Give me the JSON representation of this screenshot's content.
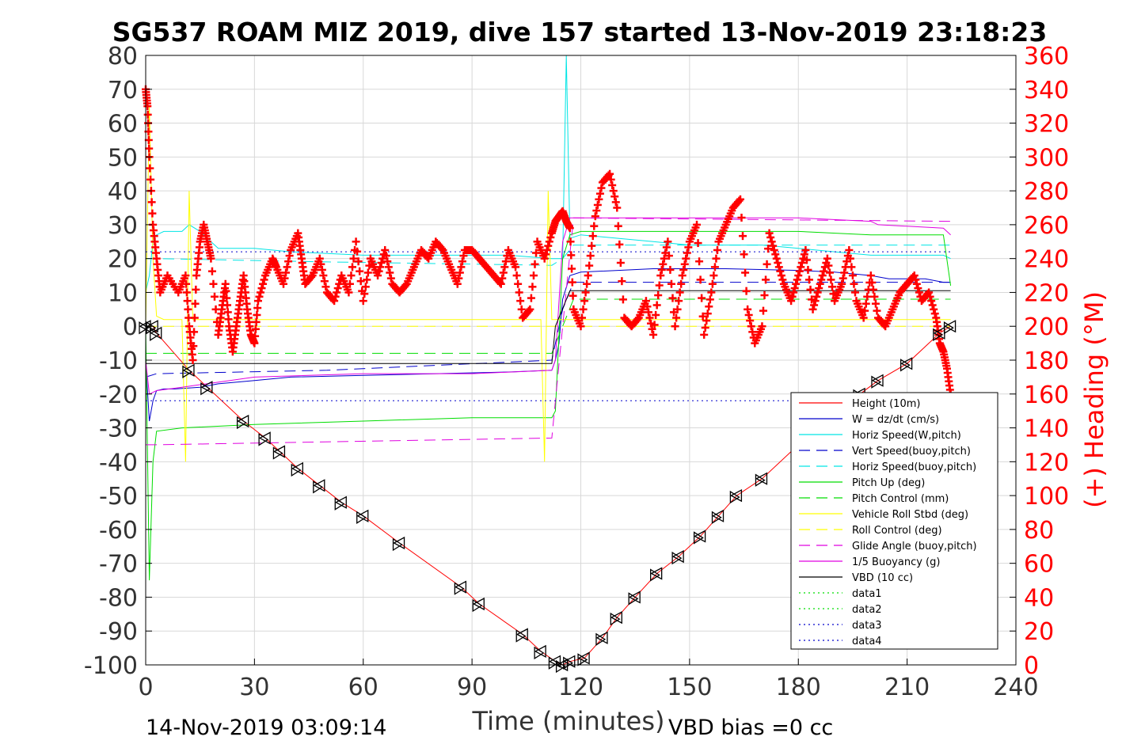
{
  "chart_data": {
    "type": "line",
    "title": "SG537 ROAM MIZ 2019, dive 157 started 13-Nov-2019 23:18:23",
    "xlabel": "Time (minutes)",
    "ylabel": "",
    "y2label": "(+) Heading (°M)",
    "xlim": [
      0,
      240
    ],
    "ylim": [
      -100,
      80
    ],
    "y2lim": [
      0,
      360
    ],
    "xticks": [
      "0",
      "30",
      "60",
      "90",
      "120",
      "150",
      "180",
      "210",
      "240"
    ],
    "yticks": [
      "80",
      "70",
      "60",
      "50",
      "40",
      "30",
      "20",
      "10",
      "0",
      "-10",
      "-20",
      "-30",
      "-40",
      "-50",
      "-60",
      "-70",
      "-80",
      "-90",
      "-100"
    ],
    "y2ticks": [
      "360",
      "340",
      "320",
      "300",
      "280",
      "260",
      "240",
      "220",
      "200",
      "180",
      "160",
      "140",
      "120",
      "100",
      "80",
      "60",
      "40",
      "20",
      "0"
    ],
    "grid": true,
    "legend_position": "lower-right",
    "footer_left": "14-Nov-2019 03:09:14",
    "footer_right": "VBD bias =0 cc",
    "colors": {
      "heading": "#ff0000",
      "height": "#ff0000",
      "w": "#0000cc",
      "horiz_speed": "#00e5e5",
      "pitch": "#00dd00",
      "roll": "#ffff00",
      "buoyancy": "#e000e0",
      "vbd": "#000000"
    },
    "legend": [
      {
        "name": "Height (10m)",
        "color": "#ff0000",
        "style": "solid"
      },
      {
        "name": "W = dz/dt (cm/s)",
        "color": "#0000cc",
        "style": "solid"
      },
      {
        "name": "Horiz Speed(W,pitch)",
        "color": "#00e5e5",
        "style": "solid"
      },
      {
        "name": "Vert Speed(buoy,pitch)",
        "color": "#0000cc",
        "style": "dashed"
      },
      {
        "name": "Horiz Speed(buoy,pitch)",
        "color": "#00e5e5",
        "style": "dashed"
      },
      {
        "name": "Pitch Up (deg)",
        "color": "#00dd00",
        "style": "solid"
      },
      {
        "name": "Pitch Control (mm)",
        "color": "#00dd00",
        "style": "dashed"
      },
      {
        "name": "Vehicle Roll Stbd (deg)",
        "color": "#ffff00",
        "style": "solid"
      },
      {
        "name": "Roll Control (deg)",
        "color": "#ffff00",
        "style": "dashed"
      },
      {
        "name": "Glide Angle (buoy,pitch)",
        "color": "#e000e0",
        "style": "dashed"
      },
      {
        "name": "1/5 Buoyancy (g)",
        "color": "#e000e0",
        "style": "solid"
      },
      {
        "name": "VBD (10 cc)",
        "color": "#000000",
        "style": "solid"
      },
      {
        "name": "data1",
        "color": "#00dd00",
        "style": "dotted"
      },
      {
        "name": "data2",
        "color": "#00dd00",
        "style": "dotted"
      },
      {
        "name": "data3",
        "color": "#0000cc",
        "style": "dotted"
      },
      {
        "name": "data4",
        "color": "#0000cc",
        "style": "dotted"
      }
    ],
    "series": [
      {
        "key": "height",
        "x": [
          0,
          2,
          3,
          12,
          17,
          27,
          33,
          37,
          42,
          48,
          54,
          60,
          70,
          87,
          92,
          104,
          109,
          113,
          115,
          117,
          121,
          126,
          130,
          135,
          141,
          147,
          153,
          158,
          163,
          170,
          185,
          197,
          202,
          210,
          219,
          222
        ],
        "y": [
          0,
          0,
          -2,
          -13,
          -18,
          -28,
          -33,
          -37,
          -42,
          -47,
          -52,
          -56,
          -64,
          -77,
          -82,
          -91,
          -96,
          -99,
          -100,
          -99,
          -98,
          -92,
          -86,
          -80,
          -73,
          -68,
          -62,
          -56,
          -50,
          -45,
          -30,
          -20,
          -16,
          -11,
          -2,
          0
        ]
      },
      {
        "key": "w",
        "x": [
          0,
          1,
          2,
          3,
          5,
          8,
          15,
          20,
          30,
          40,
          60,
          80,
          100,
          112,
          113,
          114,
          115,
          117,
          120,
          140,
          160,
          180,
          190,
          200,
          205,
          215,
          220,
          222
        ],
        "y": [
          -10,
          -28,
          -22,
          -19,
          -18.5,
          -18.5,
          -18,
          -17,
          -16,
          -15,
          -14.5,
          -14,
          -13.5,
          -13,
          -10,
          -5,
          8,
          15,
          16,
          17,
          17,
          16.5,
          16,
          15,
          14,
          14,
          13,
          13
        ]
      },
      {
        "key": "horiz_speed",
        "x": [
          0,
          1,
          2,
          3,
          5,
          10,
          12,
          15,
          18,
          20,
          30,
          40,
          60,
          80,
          100,
          112,
          113,
          115,
          116,
          117,
          120,
          130,
          140,
          150,
          160,
          170,
          180,
          190,
          200,
          210,
          220,
          222
        ],
        "y": [
          10,
          15,
          25,
          27,
          28,
          28,
          30,
          28,
          25,
          23,
          23,
          22,
          21,
          21,
          21,
          20,
          20,
          20,
          80,
          26,
          27,
          26,
          25,
          24,
          24,
          24,
          23,
          22,
          21,
          21,
          21,
          20
        ]
      },
      {
        "key": "vert_speed_buoy",
        "x": [
          0,
          3,
          50,
          112,
          115,
          118,
          222
        ],
        "y": [
          -15,
          -14,
          -13,
          -10,
          5,
          13,
          13
        ]
      },
      {
        "key": "horiz_speed_buoy",
        "x": [
          0,
          3,
          50,
          112,
          115,
          118,
          222
        ],
        "y": [
          20,
          20,
          19,
          18,
          20,
          24,
          24
        ]
      },
      {
        "key": "pitch_up",
        "x": [
          0,
          1,
          2,
          3,
          10,
          30,
          60,
          90,
          112,
          113,
          115,
          117,
          120,
          150,
          180,
          200,
          220,
          222
        ],
        "y": [
          0,
          -75,
          -40,
          -31,
          -30,
          -29,
          -28,
          -27,
          -27,
          -25,
          20,
          27,
          28,
          28,
          28,
          27,
          27,
          12
        ]
      },
      {
        "key": "pitch_control",
        "x": [
          0,
          3,
          112,
          115,
          118,
          222
        ],
        "y": [
          -8,
          -8,
          -8,
          0,
          8,
          8
        ]
      },
      {
        "key": "roll",
        "x": [
          0,
          1,
          2,
          3,
          5,
          8,
          10,
          11,
          12,
          13,
          14,
          20,
          40,
          60,
          80,
          100,
          109,
          110,
          111,
          112,
          130,
          150,
          170,
          190,
          200,
          210,
          222
        ],
        "y": [
          0,
          65,
          20,
          3,
          2,
          2,
          2,
          -40,
          40,
          2,
          2,
          2,
          2,
          2,
          2,
          2,
          2,
          -40,
          40,
          2,
          2,
          2,
          2,
          2,
          2,
          2,
          2
        ]
      },
      {
        "key": "roll_control",
        "x": [
          0,
          222
        ],
        "y": [
          0,
          0
        ]
      },
      {
        "key": "glide_angle",
        "x": [
          0,
          3,
          112,
          115,
          118,
          222
        ],
        "y": [
          -35,
          -35,
          -33,
          0,
          32,
          31
        ]
      },
      {
        "key": "buoyancy",
        "x": [
          0,
          1,
          3,
          10,
          30,
          60,
          90,
          112,
          113,
          115,
          117,
          120,
          150,
          180,
          200,
          202,
          220,
          222
        ],
        "y": [
          -10,
          -20,
          -19,
          -18,
          -15,
          -14,
          -14,
          -13,
          -10,
          25,
          32,
          32,
          32,
          32,
          31,
          30,
          29,
          27
        ]
      },
      {
        "key": "vbd",
        "x": [
          0,
          3,
          5,
          112,
          113,
          117,
          222
        ],
        "y": [
          -11,
          -11,
          -11,
          -11,
          0,
          10.5,
          10.5
        ]
      },
      {
        "key": "data_top",
        "x": [
          0,
          222
        ],
        "y": [
          22,
          22
        ]
      },
      {
        "key": "data_bottom",
        "x": [
          0,
          222
        ],
        "y": [
          -22,
          -22
        ]
      }
    ],
    "heading": {
      "x": [
        0,
        0.5,
        1,
        2,
        3,
        4,
        6,
        9,
        11,
        12,
        13,
        14,
        15,
        16,
        17,
        18,
        20,
        21,
        22,
        23,
        24,
        25,
        26,
        27,
        28,
        29,
        30,
        31,
        33,
        35,
        36,
        38,
        40,
        42,
        43,
        44,
        46,
        48,
        50,
        52,
        54,
        56,
        58,
        60,
        62,
        64,
        66,
        68,
        70,
        72,
        74,
        76,
        78,
        80,
        82,
        84,
        86,
        88,
        90,
        92,
        94,
        96,
        98,
        100,
        102,
        104,
        106,
        108,
        110,
        112,
        113,
        114,
        115,
        116,
        117,
        118,
        120,
        122,
        124,
        126,
        128,
        130,
        132,
        134,
        136,
        138,
        140,
        142,
        144,
        146,
        148,
        150,
        152,
        154,
        156,
        158,
        160,
        162,
        164,
        166,
        168,
        170,
        172,
        174,
        176,
        178,
        180,
        182,
        184,
        186,
        188,
        190,
        192,
        194,
        196,
        198,
        200,
        202,
        204,
        206,
        208,
        210,
        212,
        214,
        216,
        218,
        219,
        220,
        221,
        222
      ],
      "y": [
        340,
        330,
        300,
        260,
        240,
        220,
        230,
        220,
        230,
        200,
        180,
        230,
        250,
        260,
        250,
        240,
        195,
        210,
        225,
        200,
        185,
        200,
        215,
        230,
        210,
        195,
        190,
        215,
        230,
        240,
        235,
        225,
        245,
        255,
        240,
        225,
        230,
        240,
        220,
        215,
        230,
        220,
        250,
        215,
        240,
        230,
        245,
        225,
        220,
        225,
        235,
        245,
        240,
        250,
        245,
        235,
        225,
        245,
        245,
        240,
        235,
        230,
        225,
        245,
        235,
        205,
        210,
        250,
        240,
        255,
        262,
        265,
        268,
        262,
        258,
        210,
        200,
        230,
        265,
        285,
        290,
        270,
        205,
        200,
        205,
        215,
        195,
        230,
        250,
        200,
        230,
        250,
        260,
        195,
        220,
        250,
        260,
        270,
        275,
        210,
        190,
        200,
        255,
        240,
        225,
        215,
        230,
        245,
        210,
        225,
        240,
        215,
        225,
        245,
        215,
        205,
        230,
        205,
        200,
        210,
        220,
        225,
        230,
        215,
        220,
        205,
        190,
        185,
        175,
        160
      ]
    }
  }
}
